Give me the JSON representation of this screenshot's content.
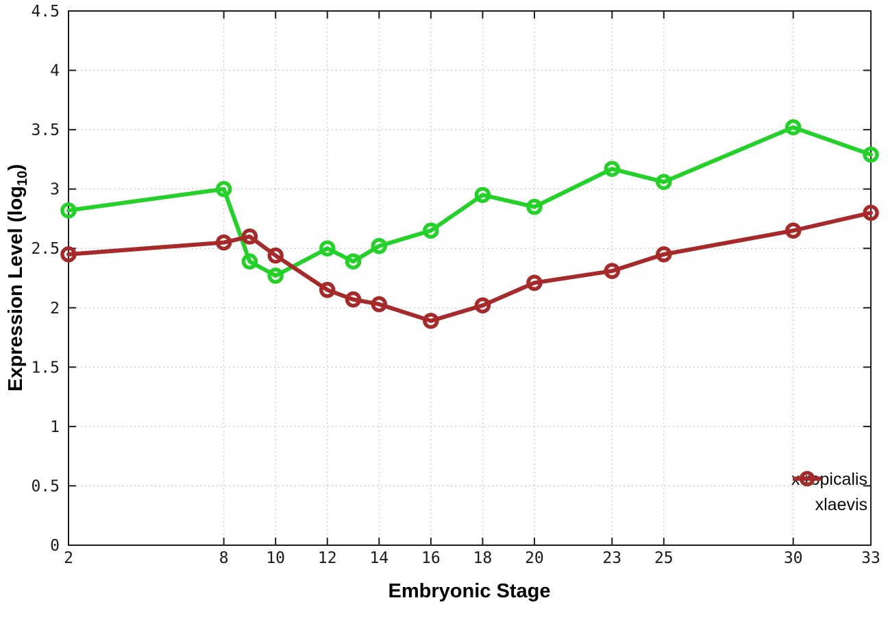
{
  "chart_data": {
    "type": "line",
    "title": "",
    "xlabel": "Embryonic Stage",
    "ylabel": "Expression Level (log10)",
    "ylabel_parts": {
      "main": "Expression Level (log",
      "sub": "10",
      "close": ")"
    },
    "grid": true,
    "legend_position": "bottom-right",
    "xlim": [
      2,
      33
    ],
    "ylim": [
      0,
      4.5
    ],
    "x_ticks": [
      2,
      8,
      10,
      12,
      14,
      16,
      18,
      20,
      23,
      25,
      30,
      33
    ],
    "x_tick_labels": [
      "2",
      "8",
      "10",
      "12",
      "14",
      "16",
      "18",
      "20",
      "23",
      "25",
      "30",
      "33"
    ],
    "y_ticks": [
      0,
      0.5,
      1,
      1.5,
      2,
      2.5,
      3,
      3.5,
      4,
      4.5
    ],
    "y_tick_labels": [
      "0",
      "0.5",
      "1",
      "1.5",
      "2",
      "2.5",
      "3",
      "3.5",
      "4",
      "4.5"
    ],
    "x": [
      2,
      8,
      9,
      10,
      12,
      13,
      14,
      16,
      18,
      20,
      23,
      25,
      30,
      33
    ],
    "series": [
      {
        "name": "xtropicalis",
        "color": "#24d128",
        "values": [
          2.82,
          3.0,
          2.39,
          2.27,
          2.5,
          2.39,
          2.52,
          2.65,
          2.95,
          2.85,
          3.17,
          3.06,
          3.52,
          3.29
        ]
      },
      {
        "name": "xlaevis",
        "color": "#a72a2a",
        "values": [
          2.45,
          2.55,
          2.6,
          2.44,
          2.15,
          2.07,
          2.03,
          1.89,
          2.02,
          2.21,
          2.31,
          2.45,
          2.65,
          2.8
        ]
      }
    ],
    "grid_color": "#aaaaaa",
    "border_color": "#1c1c1c",
    "tick_label_color": "#1a1a1a"
  }
}
